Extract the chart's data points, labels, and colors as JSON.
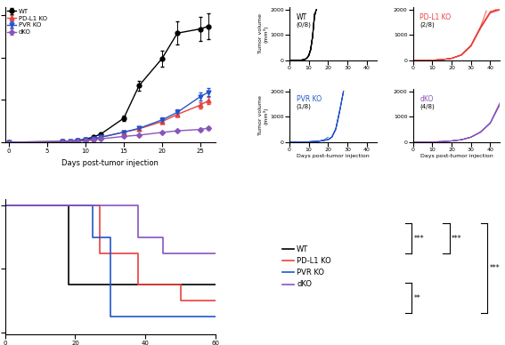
{
  "colors": {
    "WT": "#000000",
    "PD-L1 KO": "#e8413e",
    "PVR KO": "#2255cc",
    "dKO": "#8855bb"
  },
  "main_plot": {
    "days": [
      0,
      7,
      8,
      9,
      10,
      11,
      12,
      15,
      17,
      20,
      22,
      25,
      26
    ],
    "WT_mean": [
      5,
      18,
      28,
      45,
      75,
      125,
      195,
      570,
      1340,
      1980,
      2580,
      2680,
      2740
    ],
    "WT_err": [
      3,
      4,
      5,
      7,
      9,
      14,
      22,
      55,
      115,
      190,
      270,
      290,
      310
    ],
    "PDL1_mean": [
      5,
      15,
      24,
      36,
      55,
      82,
      120,
      240,
      320,
      490,
      660,
      880,
      980
    ],
    "PDL1_err": [
      3,
      4,
      4,
      5,
      7,
      9,
      13,
      28,
      32,
      45,
      55,
      75,
      85
    ],
    "PVR_mean": [
      5,
      15,
      24,
      36,
      55,
      82,
      120,
      240,
      330,
      530,
      710,
      1080,
      1180
    ],
    "PVR_err": [
      3,
      4,
      4,
      5,
      7,
      9,
      13,
      28,
      32,
      52,
      62,
      88,
      95
    ],
    "dKO_mean": [
      5,
      12,
      18,
      26,
      38,
      58,
      82,
      140,
      170,
      235,
      272,
      305,
      335
    ],
    "dKO_err": [
      3,
      3,
      3,
      4,
      5,
      7,
      9,
      13,
      16,
      22,
      25,
      28,
      32
    ]
  },
  "individual_WT": [
    [
      0,
      2,
      4,
      6,
      8,
      9,
      10,
      11,
      12,
      13,
      14
    ],
    [
      5,
      8,
      12,
      20,
      45,
      90,
      180,
      400,
      900,
      1700,
      2000
    ],
    [
      0,
      2,
      4,
      6,
      8,
      9,
      10,
      11,
      12,
      13,
      14
    ],
    [
      5,
      8,
      12,
      20,
      48,
      95,
      190,
      420,
      920,
      1750,
      2000
    ],
    [
      0,
      2,
      4,
      6,
      8,
      9,
      10,
      11,
      12,
      13
    ],
    [
      5,
      8,
      12,
      20,
      50,
      100,
      200,
      440,
      950,
      1800
    ],
    [
      0,
      2,
      4,
      6,
      8,
      9,
      10,
      11,
      12,
      13
    ],
    [
      5,
      8,
      12,
      20,
      46,
      92,
      185,
      410,
      910,
      1720
    ],
    [
      0,
      2,
      4,
      6,
      8,
      9,
      10,
      11,
      12,
      13,
      14
    ],
    [
      5,
      8,
      12,
      20,
      47,
      93,
      187,
      415,
      912,
      1730,
      2000
    ],
    [
      0,
      2,
      4,
      6,
      8,
      9,
      10,
      11,
      12
    ],
    [
      5,
      8,
      12,
      20,
      49,
      97,
      195,
      430,
      940
    ],
    [
      0,
      2,
      4,
      6,
      8,
      9,
      10,
      11,
      12,
      13
    ],
    [
      5,
      8,
      12,
      20,
      51,
      102,
      205,
      450,
      960,
      1820
    ],
    [
      0,
      2,
      4,
      6,
      8,
      9,
      10,
      11,
      12,
      13,
      14
    ],
    [
      5,
      8,
      12,
      20,
      52,
      104,
      208,
      460,
      970,
      1840,
      2000
    ]
  ],
  "individual_PDL1": [
    [
      0,
      5,
      10,
      15,
      20,
      25,
      30,
      35,
      40,
      43
    ],
    [
      5,
      10,
      20,
      40,
      90,
      220,
      580,
      1300,
      1900,
      2000
    ],
    [
      0,
      5,
      10,
      15,
      20,
      25,
      30,
      35,
      40,
      45
    ],
    [
      5,
      10,
      20,
      40,
      92,
      225,
      590,
      1320,
      1920,
      2000
    ],
    [
      0,
      5,
      10,
      15,
      20,
      25,
      30,
      35,
      38
    ],
    [
      5,
      10,
      20,
      42,
      95,
      230,
      600,
      1340,
      1950
    ],
    [
      0,
      5,
      10,
      15,
      20,
      25,
      30,
      35,
      40,
      44
    ],
    [
      5,
      10,
      20,
      38,
      88,
      215,
      570,
      1280,
      1880,
      2000
    ],
    [
      0,
      5,
      10,
      15,
      20,
      25,
      30,
      35,
      40,
      45
    ],
    [
      5,
      10,
      20,
      40,
      90,
      220,
      580,
      1300,
      1900,
      2000
    ],
    [
      0,
      5,
      10,
      15,
      20,
      25,
      30,
      32
    ],
    [
      5,
      10,
      20,
      40,
      90,
      220,
      580,
      900
    ],
    [
      0,
      5,
      10,
      15,
      20,
      25,
      30,
      35,
      40,
      45
    ],
    [
      5,
      10,
      20,
      38,
      85,
      210,
      560,
      1260,
      1860,
      1980
    ]
  ],
  "individual_PVR": [
    [
      0,
      5,
      10,
      15,
      20,
      22,
      24,
      26,
      28
    ],
    [
      5,
      10,
      20,
      40,
      100,
      200,
      500,
      1200,
      2000
    ],
    [
      0,
      5,
      10,
      15,
      20,
      22,
      24,
      26,
      28
    ],
    [
      5,
      10,
      20,
      42,
      105,
      210,
      520,
      1220,
      2000
    ],
    [
      0,
      5,
      10,
      15,
      20,
      22,
      24,
      26
    ],
    [
      5,
      10,
      20,
      44,
      110,
      220,
      540,
      1250
    ],
    [
      0,
      5,
      10,
      15,
      18,
      20
    ],
    [
      5,
      10,
      20,
      42,
      100,
      200
    ],
    [
      0,
      5,
      10,
      15,
      20,
      22,
      24,
      26,
      28
    ],
    [
      5,
      10,
      20,
      40,
      102,
      204,
      510,
      1210,
      2000
    ],
    [
      0,
      5,
      10,
      15,
      20,
      22,
      24,
      26,
      28
    ],
    [
      5,
      10,
      20,
      40,
      100,
      200,
      500,
      1200,
      2000
    ],
    [
      0,
      5,
      10,
      15,
      20,
      22,
      24,
      26,
      28
    ],
    [
      5,
      10,
      20,
      41,
      103,
      206,
      515,
      1215,
      2000
    ]
  ],
  "individual_dKO": [
    [
      0,
      5,
      10,
      15,
      20,
      25,
      30,
      35,
      40,
      45,
      48
    ],
    [
      5,
      8,
      15,
      28,
      55,
      100,
      200,
      400,
      750,
      1500,
      2000
    ],
    [
      0,
      5,
      10,
      15,
      20,
      25,
      30,
      35,
      40,
      45
    ],
    [
      5,
      8,
      15,
      28,
      56,
      102,
      202,
      404,
      755,
      1510
    ],
    [
      0,
      5,
      10,
      15,
      20,
      25,
      30,
      35,
      40,
      45,
      48
    ],
    [
      5,
      8,
      15,
      28,
      54,
      98,
      196,
      392,
      740,
      1480,
      1970
    ],
    [
      0,
      5,
      10,
      15,
      20,
      25,
      30,
      35,
      40,
      45
    ],
    [
      5,
      8,
      15,
      28,
      55,
      100,
      200,
      400,
      750,
      1500
    ],
    [
      0,
      5,
      10,
      15,
      20,
      25,
      30,
      35,
      40,
      45,
      48
    ],
    [
      5,
      8,
      15,
      28,
      57,
      104,
      208,
      416,
      780,
      1560,
      2000
    ],
    [
      0,
      5,
      10,
      15,
      20,
      25,
      30
    ],
    [
      5,
      8,
      15,
      28,
      55,
      100,
      200
    ],
    [
      0,
      5,
      10,
      15,
      20,
      25,
      30,
      35
    ],
    [
      5,
      8,
      15,
      28,
      55,
      100,
      200,
      400
    ]
  ],
  "survival": {
    "WT_times": [
      0,
      18,
      18,
      60
    ],
    "WT_surv": [
      1.0,
      1.0,
      0.375,
      0.375
    ],
    "PDL1_times": [
      0,
      27,
      27,
      38,
      38,
      50,
      50,
      60
    ],
    "PDL1_surv": [
      1.0,
      1.0,
      0.625,
      0.625,
      0.375,
      0.375,
      0.25,
      0.25
    ],
    "PVR_times": [
      0,
      25,
      25,
      30,
      30,
      60
    ],
    "PVR_surv": [
      1.0,
      1.0,
      0.75,
      0.75,
      0.125,
      0.125
    ],
    "dKO_times": [
      0,
      38,
      38,
      45,
      45,
      60
    ],
    "dKO_surv": [
      1.0,
      1.0,
      0.75,
      0.75,
      0.625,
      0.625
    ]
  }
}
